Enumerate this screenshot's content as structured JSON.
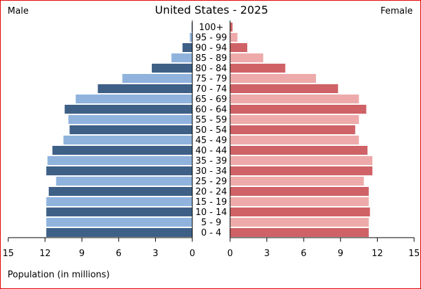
{
  "chart_data": {
    "type": "bar",
    "title": "United States - 2025",
    "left_label": "Male",
    "right_label": "Female",
    "xlabel": "Population (in millions)",
    "xlim": [
      0,
      15
    ],
    "x_ticks": [
      "15",
      "12",
      "9",
      "6",
      "3",
      "0"
    ],
    "x_ticks_right": [
      "0",
      "3",
      "6",
      "9",
      "12",
      "15"
    ],
    "categories": [
      "100+",
      "95 - 99",
      "90 - 94",
      "85 - 89",
      "80 - 84",
      "75 - 79",
      "70 - 74",
      "65 - 69",
      "60 - 64",
      "55 - 59",
      "50 - 54",
      "45 - 49",
      "40 - 44",
      "35 - 39",
      "30 - 34",
      "25 - 29",
      "20 - 24",
      "15 - 19",
      "10 - 14",
      "5 - 9",
      "0 - 4"
    ],
    "series": [
      {
        "name": "Male",
        "values": [
          0.05,
          0.2,
          0.8,
          1.7,
          3.3,
          5.7,
          7.7,
          9.5,
          10.4,
          10.1,
          10.0,
          10.5,
          11.4,
          11.8,
          11.9,
          11.1,
          11.7,
          11.9,
          11.9,
          11.9,
          11.9
        ],
        "colors": [
          "#3e6087",
          "#8fb3dd"
        ]
      },
      {
        "name": "Female",
        "values": [
          0.2,
          0.6,
          1.4,
          2.7,
          4.5,
          7.0,
          8.8,
          10.5,
          11.1,
          10.5,
          10.2,
          10.5,
          11.2,
          11.6,
          11.6,
          10.9,
          11.3,
          11.3,
          11.4,
          11.3,
          11.3
        ],
        "colors": [
          "#cf6266",
          "#eeaaaa"
        ]
      }
    ],
    "grid": false
  }
}
